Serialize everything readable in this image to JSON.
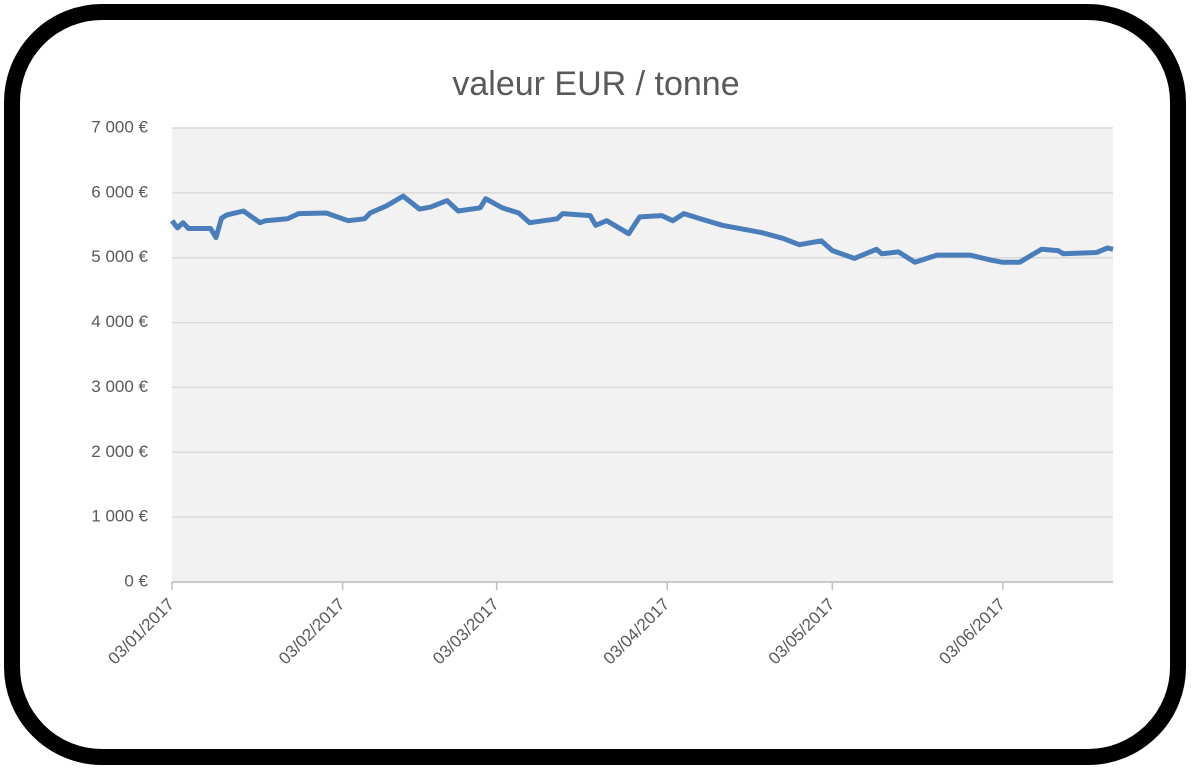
{
  "chart_data": {
    "type": "line",
    "title": "valeur EUR / tonne",
    "x": [
      "03/01/2017",
      "04/01/2017",
      "05/01/2017",
      "06/01/2017",
      "10/01/2017",
      "11/01/2017",
      "12/01/2017",
      "13/01/2017",
      "16/01/2017",
      "19/01/2017",
      "20/01/2017",
      "24/01/2017",
      "26/01/2017",
      "31/01/2017",
      "04/02/2017",
      "07/02/2017",
      "08/02/2017",
      "11/02/2017",
      "14/02/2017",
      "17/02/2017",
      "19/02/2017",
      "22/02/2017",
      "23/02/2017",
      "24/02/2017",
      "28/02/2017",
      "01/03/2017",
      "04/03/2017",
      "07/03/2017",
      "09/03/2017",
      "14/03/2017",
      "15/03/2017",
      "20/03/2017",
      "21/03/2017",
      "23/03/2017",
      "27/03/2017",
      "29/03/2017",
      "02/04/2017",
      "04/04/2017",
      "06/04/2017",
      "09/04/2017",
      "13/04/2017",
      "20/04/2017",
      "24/04/2017",
      "27/04/2017",
      "01/05/2017",
      "03/05/2017",
      "07/05/2017",
      "11/05/2017",
      "12/05/2017",
      "15/05/2017",
      "18/05/2017",
      "22/05/2017",
      "28/05/2017",
      "01/06/2017",
      "03/06/2017",
      "06/06/2017",
      "10/06/2017",
      "13/06/2017",
      "14/06/2017",
      "20/06/2017",
      "22/06/2017",
      "23/06/2017"
    ],
    "series": [
      {
        "name": "valeur EUR / tonne",
        "color": "#4a7ebb",
        "values": [
          5570,
          5460,
          5540,
          5450,
          5450,
          5310,
          5610,
          5660,
          5720,
          5540,
          5570,
          5600,
          5680,
          5690,
          5570,
          5600,
          5690,
          5800,
          5950,
          5750,
          5780,
          5880,
          5800,
          5720,
          5770,
          5910,
          5770,
          5690,
          5540,
          5600,
          5680,
          5650,
          5500,
          5570,
          5370,
          5630,
          5650,
          5570,
          5680,
          5600,
          5500,
          5390,
          5300,
          5200,
          5260,
          5110,
          4990,
          5130,
          5060,
          5090,
          4930,
          5040,
          5040,
          4960,
          4930,
          4930,
          5130,
          5110,
          5060,
          5080,
          5150,
          5130
        ]
      }
    ],
    "xlim": [
      "03/01/2017",
      "23/06/2017"
    ],
    "xticks": [
      "03/01/2017",
      "03/02/2017",
      "03/03/2017",
      "03/04/2017",
      "03/05/2017",
      "03/06/2017"
    ],
    "ylim": [
      0,
      7000
    ],
    "yticks": [
      {
        "value": 0,
        "label": "0 €"
      },
      {
        "value": 1000,
        "label": "1 000 €"
      },
      {
        "value": 2000,
        "label": "2 000 €"
      },
      {
        "value": 3000,
        "label": "3 000 €"
      },
      {
        "value": 4000,
        "label": "4 000 €"
      },
      {
        "value": 5000,
        "label": "5 000 €"
      },
      {
        "value": 6000,
        "label": "6 000 €"
      },
      {
        "value": 7000,
        "label": "7 000 €"
      }
    ],
    "grid": true
  }
}
